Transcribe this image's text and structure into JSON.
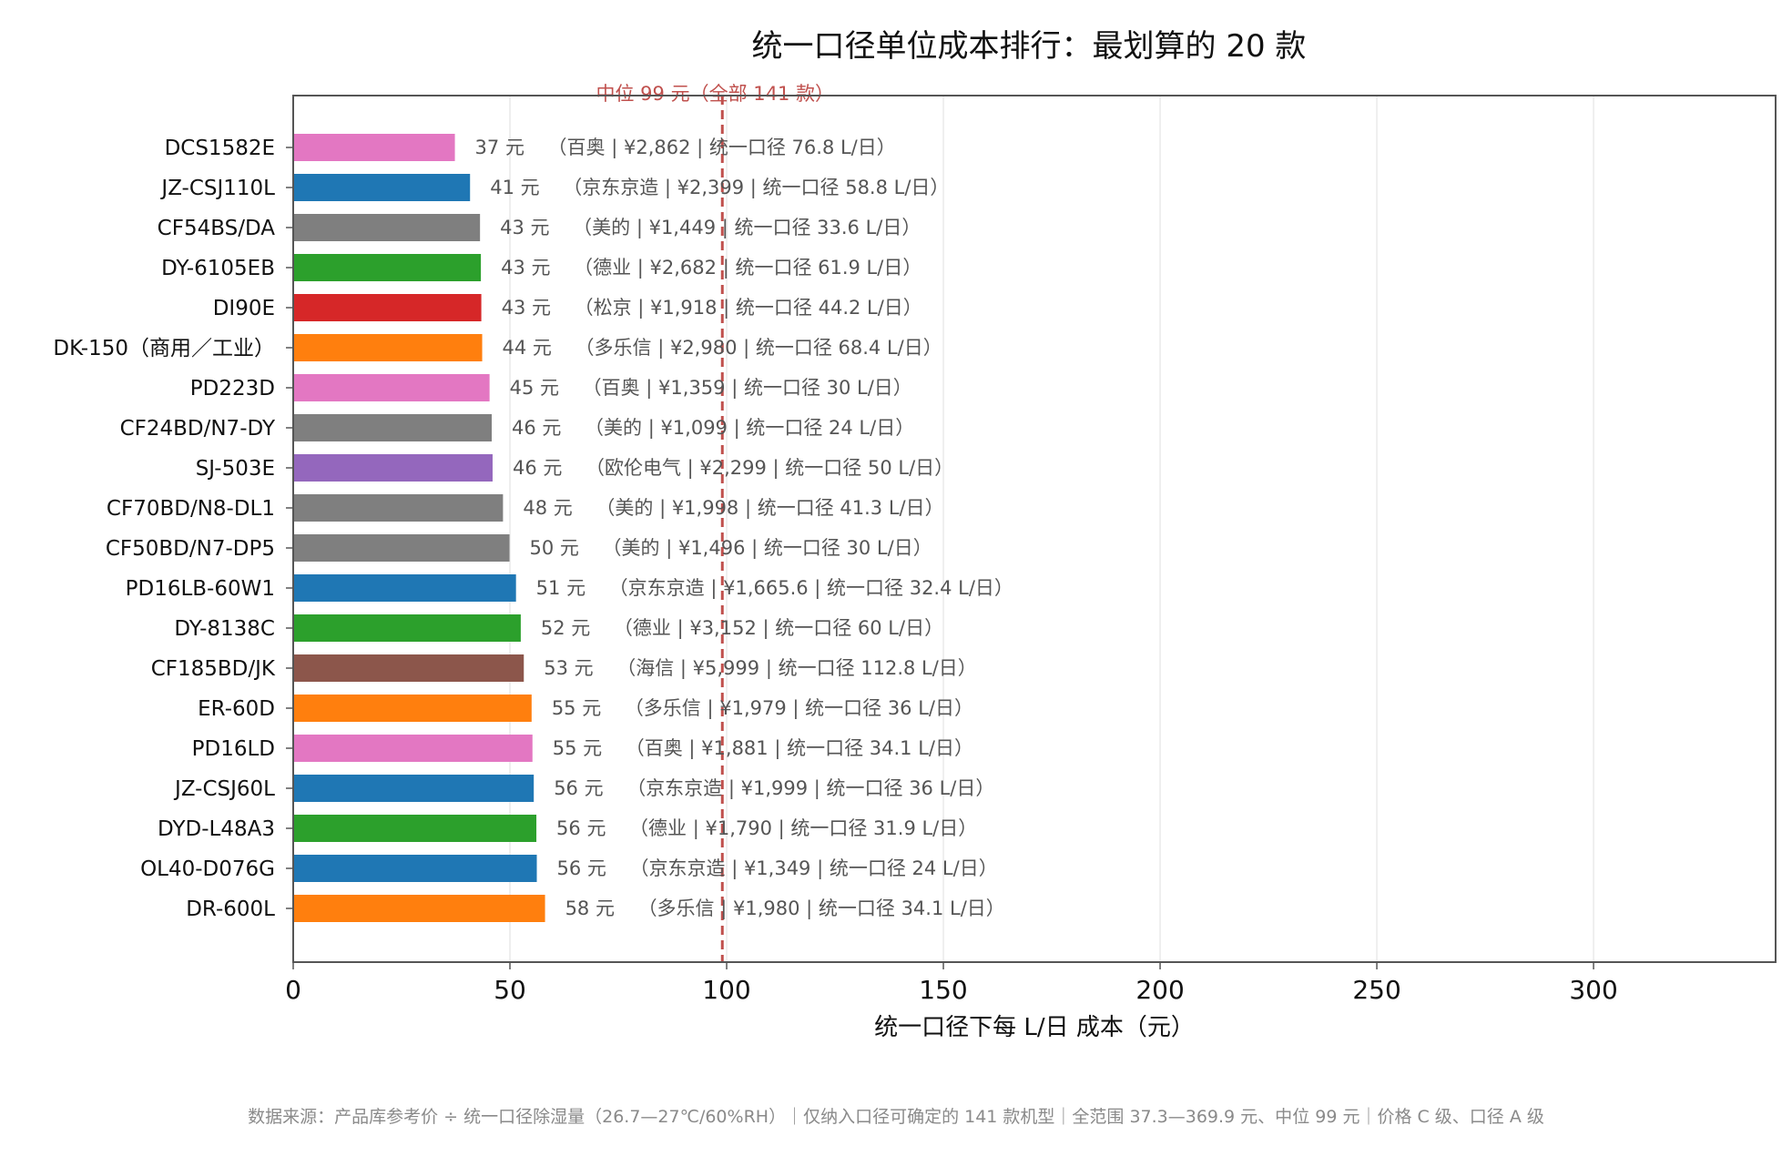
{
  "chart_data": {
    "type": "bar",
    "orientation": "horizontal",
    "title": "统一口径单位成本排行：最划算的 20 款",
    "xlabel": "统一口径下每 L/日 成本（元）",
    "ylabel": "",
    "xlim": [
      0,
      342
    ],
    "xticks": [
      "0",
      "50",
      "100",
      "150",
      "200",
      "250",
      "300"
    ],
    "grid": "vertical",
    "median": {
      "value": 99,
      "label": "中位 99 元（全部 141 款）",
      "color": "#c0504d"
    },
    "categories": [
      "DCS1582E",
      "JZ-CSJ110L",
      "CF54BS/DA",
      "DY-6105EB",
      "DI90E",
      "DK-150（商用／工业）",
      "PD223D",
      "CF24BD/N7-DY",
      "SJ-503E",
      "CF70BD/N8-DL1",
      "CF50BD/N7-DP5",
      "PD16LB-60W1",
      "DY-8138C",
      "CF185BD/JK",
      "ER-60D",
      "PD16LD",
      "JZ-CSJ60L",
      "DYD-L48A3",
      "OL40-D076G",
      "DR-600L"
    ],
    "values": [
      37.3,
      40.8,
      43.1,
      43.3,
      43.4,
      43.6,
      45.3,
      45.8,
      46.0,
      48.4,
      49.9,
      51.4,
      52.5,
      53.2,
      55.0,
      55.2,
      55.5,
      56.1,
      56.2,
      58.1
    ],
    "value_labels": [
      "37 元",
      "41 元",
      "43 元",
      "43 元",
      "43 元",
      "44 元",
      "45 元",
      "46 元",
      "46 元",
      "48 元",
      "50 元",
      "51 元",
      "52 元",
      "53 元",
      "55 元",
      "55 元",
      "56 元",
      "56 元",
      "56 元",
      "58 元"
    ],
    "detail_labels": [
      "（百奥 | ¥2,862 | 统一口径 76.8 L/日）",
      "（京东京造 | ¥2,399 | 统一口径 58.8 L/日）",
      "（美的 | ¥1,449 | 统一口径 33.6 L/日）",
      "（德业 | ¥2,682 | 统一口径 61.9 L/日）",
      "（松京 | ¥1,918 | 统一口径 44.2 L/日）",
      "（多乐信 | ¥2,980 | 统一口径 68.4 L/日）",
      "（百奥 | ¥1,359 | 统一口径 30 L/日）",
      "（美的 | ¥1,099 | 统一口径 24 L/日）",
      "（欧伦电气 | ¥2,299 | 统一口径 50 L/日）",
      "（美的 | ¥1,998 | 统一口径 41.3 L/日）",
      "（美的 | ¥1,496 | 统一口径 30 L/日）",
      "（京东京造 | ¥1,665.6 | 统一口径 32.4 L/日）",
      "（德业 | ¥3,152 | 统一口径 60 L/日）",
      "（海信 | ¥5,999 | 统一口径 112.8 L/日）",
      "（多乐信 | ¥1,979 | 统一口径 36 L/日）",
      "（百奥 | ¥1,881 | 统一口径 34.1 L/日）",
      "（京东京造 | ¥1,999 | 统一口径 36 L/日）",
      "（德业 | ¥1,790 | 统一口径 31.9 L/日）",
      "（京东京造 | ¥1,349 | 统一口径 24 L/日）",
      "（多乐信 | ¥1,980 | 统一口径 34.1 L/日）"
    ],
    "bar_colors": [
      "#e377c2",
      "#1f77b4",
      "#7f7f7f",
      "#2ca02c",
      "#d62728",
      "#ff7f0e",
      "#e377c2",
      "#7f7f7f",
      "#9467bd",
      "#7f7f7f",
      "#7f7f7f",
      "#1f77b4",
      "#2ca02c",
      "#8c564b",
      "#ff7f0e",
      "#e377c2",
      "#1f77b4",
      "#2ca02c",
      "#1f77b4",
      "#ff7f0e"
    ]
  },
  "footer": "数据来源：产品库参考价 ÷ 统一口径除湿量（26.7—27℃/60%RH）｜仅纳入口径可确定的 141 款机型｜全范围 37.3—369.9 元、中位 99 元｜价格 C 级、口径 A 级"
}
